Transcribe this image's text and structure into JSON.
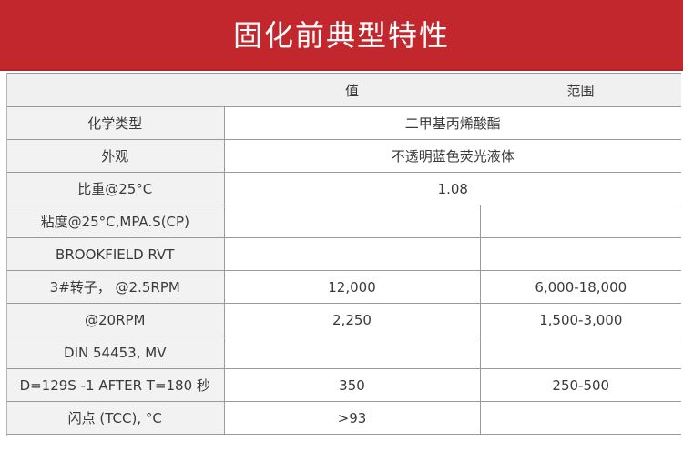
{
  "banner": {
    "title": "固化前典型特性",
    "color": "#c1272d"
  },
  "table": {
    "headers": [
      "",
      "值",
      "范围"
    ],
    "rows": [
      {
        "label": "化学类型",
        "value": "二甲基丙烯酸酯",
        "range": "",
        "merged": true
      },
      {
        "label": "外观",
        "value": "不透明蓝色荧光液体",
        "range": "",
        "merged": true
      },
      {
        "label": "比重@25°C",
        "value": "1.08",
        "range": "",
        "merged": true
      },
      {
        "label": "粘度@25°C,MPA.S(CP)",
        "value": "",
        "range": ""
      },
      {
        "label": "BROOKFIELD RVT",
        "value": "",
        "range": ""
      },
      {
        "label": "3#转子，  @2.5RPM",
        "value": "12,000",
        "range": "6,000-18,000"
      },
      {
        "label": "@20RPM",
        "value": "2,250",
        "range": "1,500-3,000"
      },
      {
        "label": "DIN 54453, MV",
        "value": "",
        "range": ""
      },
      {
        "label": "D=129S -1 AFTER T=180 秒",
        "value": "350",
        "range": "250-500"
      },
      {
        "label": "闪点 (TCC), °C",
        "value": ">93",
        "range": ""
      }
    ]
  }
}
